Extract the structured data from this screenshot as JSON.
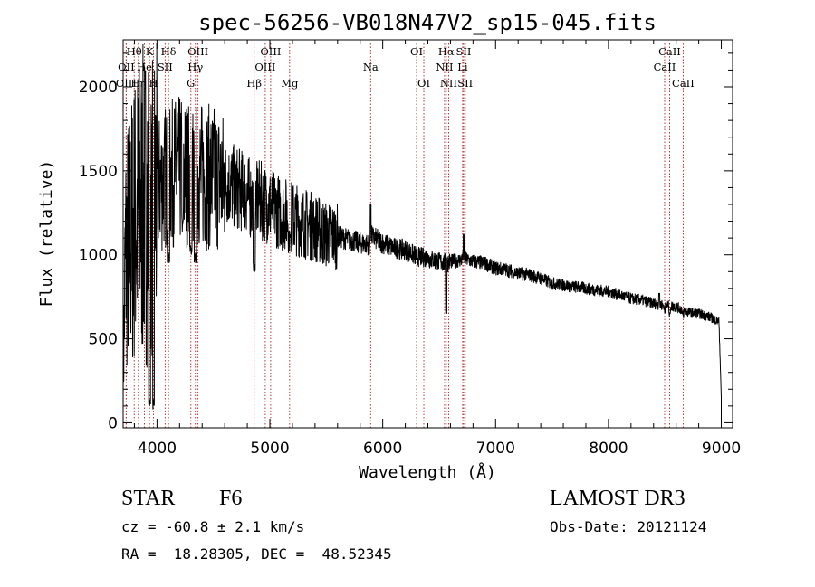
{
  "chart_data": {
    "type": "line",
    "title": "spec-56256-VB018N47V2_sp15-045.fits",
    "xlabel": "Wavelength (Å)",
    "ylabel": "Flux (relative)",
    "xlim": [
      3700,
      9100
    ],
    "ylim": [
      -30,
      2280
    ],
    "xticks": [
      4000,
      5000,
      6000,
      7000,
      8000,
      9000
    ],
    "yticks": [
      0,
      500,
      1000,
      1500,
      2000
    ],
    "series": [
      {
        "name": "flux",
        "anchors_x": [
          3700,
          3720,
          3760,
          3800,
          3850,
          3900,
          3950,
          3970,
          4000,
          4100,
          4200,
          4300,
          4400,
          4500,
          4600,
          4700,
          4800,
          4861,
          4900,
          5000,
          5100,
          5200,
          5300,
          5400,
          5500,
          5600,
          5700,
          5800,
          5893,
          5900,
          6000,
          6100,
          6200,
          6300,
          6400,
          6500,
          6563,
          6600,
          6700,
          6708,
          6800,
          6900,
          7000,
          7100,
          7200,
          7300,
          7400,
          7500,
          7600,
          7700,
          7800,
          7900,
          8000,
          8100,
          8200,
          8300,
          8400,
          8500,
          8600,
          8700,
          8800,
          8900,
          8980,
          9000
        ],
        "anchors_y": [
          200,
          1000,
          1100,
          1200,
          1280,
          1300,
          1350,
          1300,
          1400,
          1480,
          1500,
          1480,
          1470,
          1460,
          1430,
          1400,
          1360,
          1300,
          1330,
          1290,
          1250,
          1220,
          1190,
          1160,
          1120,
          1110,
          1090,
          1070,
          1060,
          1110,
          1070,
          1040,
          1030,
          990,
          980,
          960,
          950,
          960,
          970,
          980,
          960,
          950,
          920,
          910,
          890,
          880,
          860,
          830,
          820,
          810,
          800,
          790,
          780,
          760,
          740,
          730,
          710,
          700,
          690,
          660,
          650,
          630,
          600,
          150
        ],
        "absorption": [
          {
            "x": 3934,
            "y": 100,
            "w": 8
          },
          {
            "x": 3969,
            "y": 80,
            "w": 8
          },
          {
            "x": 4102,
            "y": 950,
            "w": 10
          },
          {
            "x": 4227,
            "y": 1150,
            "w": 6
          },
          {
            "x": 4300,
            "y": 1000,
            "w": 10
          },
          {
            "x": 4340,
            "y": 950,
            "w": 10
          },
          {
            "x": 4861,
            "y": 900,
            "w": 10
          },
          {
            "x": 5175,
            "y": 1100,
            "w": 8
          },
          {
            "x": 6563,
            "y": 650,
            "w": 6
          },
          {
            "x": 8498,
            "y": 650,
            "w": 6
          },
          {
            "x": 8542,
            "y": 630,
            "w": 6
          },
          {
            "x": 8662,
            "y": 620,
            "w": 6
          }
        ],
        "emission": [
          {
            "x": 5893,
            "y": 1300,
            "w": 4
          },
          {
            "x": 6717,
            "y": 1120,
            "w": 4
          },
          {
            "x": 8450,
            "y": 770,
            "w": 4
          }
        ]
      }
    ],
    "line_markers": [
      {
        "label": "Hθ",
        "x": 3798,
        "row": 1
      },
      {
        "label": "OII",
        "x": 3727,
        "row": 2
      },
      {
        "label": "OIII",
        "x": 3727,
        "row": 3
      },
      {
        "label": "Hη",
        "x": 3835,
        "row": 3
      },
      {
        "label": "K",
        "x": 3934,
        "row": 1
      },
      {
        "label": "He",
        "x": 3889,
        "row": 2
      },
      {
        "label": "H",
        "x": 3969,
        "row": 3
      },
      {
        "label": "Hδ",
        "x": 4102,
        "row": 1
      },
      {
        "label": "SII",
        "x": 4072,
        "row": 2
      },
      {
        "label": "OIII",
        "x": 4363,
        "row": 1
      },
      {
        "label": "Hγ",
        "x": 4340,
        "row": 2
      },
      {
        "label": "G",
        "x": 4300,
        "row": 3
      },
      {
        "label": "Hβ",
        "x": 4861,
        "row": 3
      },
      {
        "label": "OIII",
        "x": 5007,
        "row": 1
      },
      {
        "label": "OIII",
        "x": 4959,
        "row": 2
      },
      {
        "label": "Mg",
        "x": 5175,
        "row": 3
      },
      {
        "label": "Na",
        "x": 5893,
        "row": 2
      },
      {
        "label": "OI",
        "x": 6300,
        "row": 1
      },
      {
        "label": "OI",
        "x": 6364,
        "row": 3
      },
      {
        "label": "Hα",
        "x": 6563,
        "row": 1
      },
      {
        "label": "SII",
        "x": 6717,
        "row": 1
      },
      {
        "label": "NII",
        "x": 6548,
        "row": 2
      },
      {
        "label": "Li",
        "x": 6708,
        "row": 2
      },
      {
        "label": "NII",
        "x": 6584,
        "row": 3
      },
      {
        "label": "SII",
        "x": 6731,
        "row": 3
      },
      {
        "label": "CaII",
        "x": 8542,
        "row": 1
      },
      {
        "label": "CaII",
        "x": 8498,
        "row": 2
      },
      {
        "label": "CaII",
        "x": 8662,
        "row": 3
      }
    ]
  },
  "info": {
    "object_class": "STAR",
    "subclass": "F6",
    "survey": "LAMOST DR3",
    "redshift": "cz = -60.8 ± 2.1 km/s",
    "obs_date": "Obs-Date: 20121124",
    "coords": "RA =  18.28305, DEC =  48.52345"
  }
}
